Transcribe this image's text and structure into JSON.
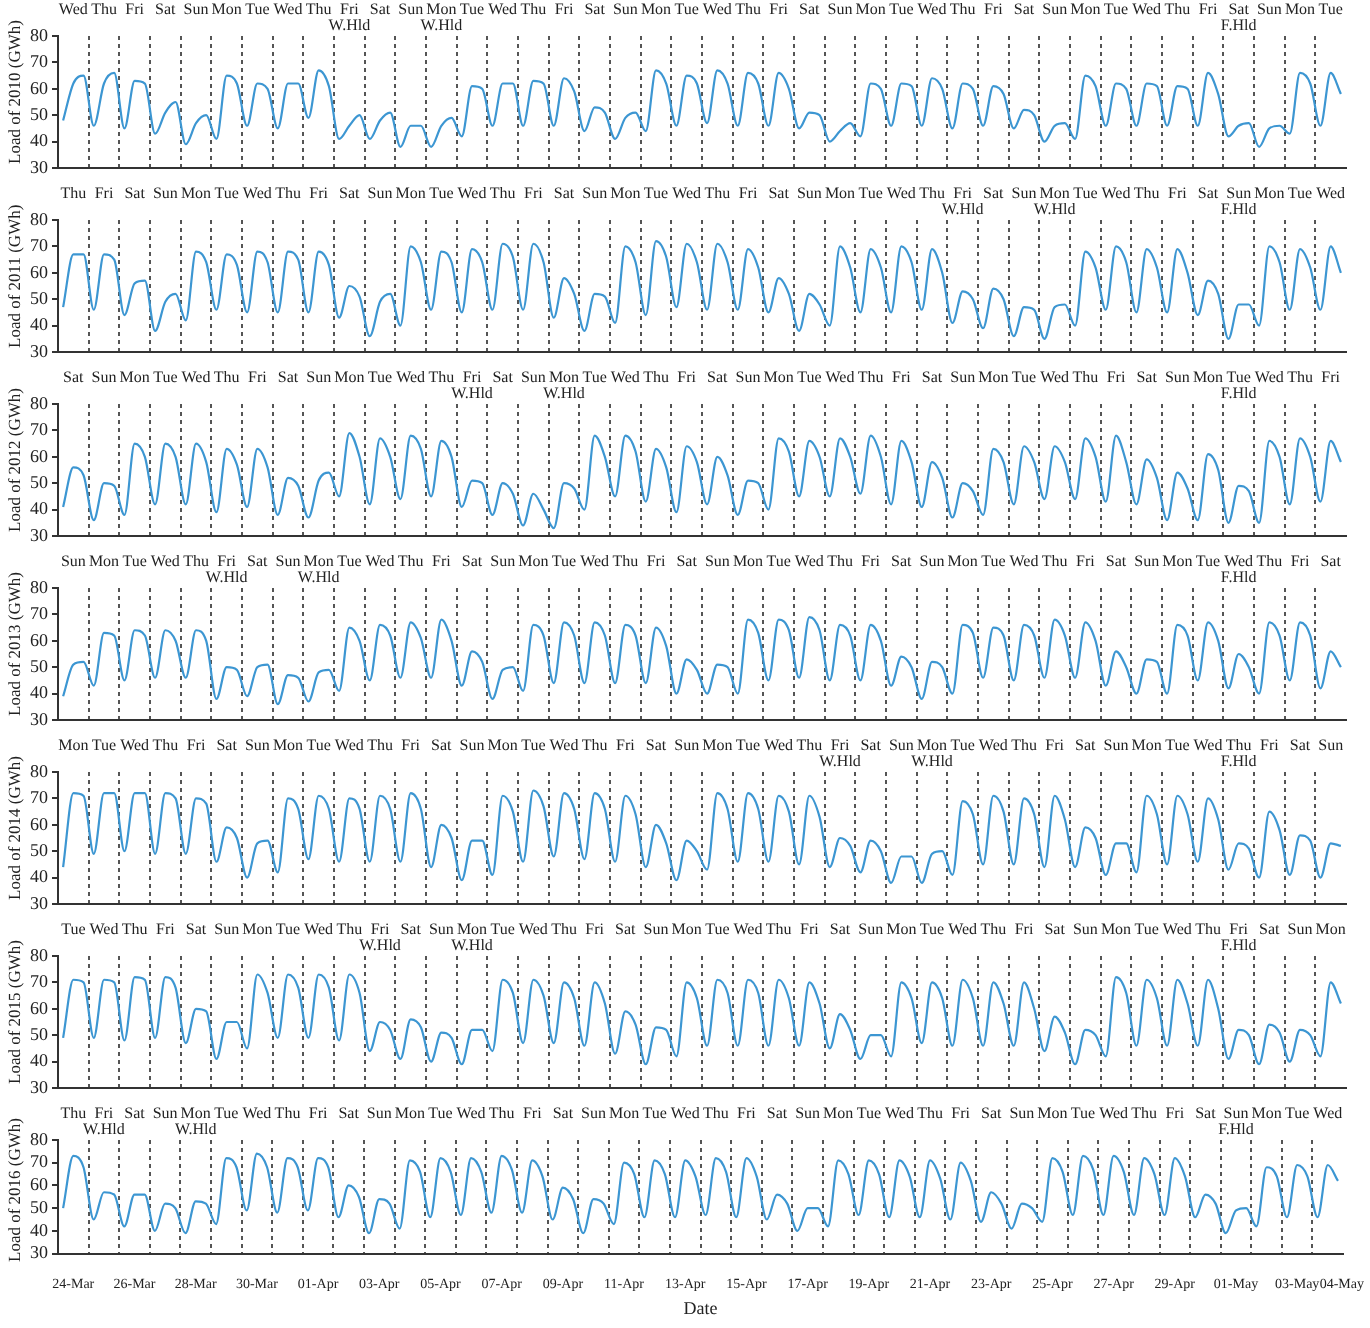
{
  "chart_data": [
    {
      "type": "line",
      "ylabel": "Load of 2010 (GWh)",
      "color": "#3c96d2",
      "marker": "none",
      "grid": "x",
      "ylim": [
        30,
        80
      ],
      "yticks": [
        30,
        40,
        50,
        60,
        70,
        80
      ],
      "categories": [
        null,
        "Wed",
        null,
        null,
        "Thu",
        null,
        null,
        "Fri",
        null,
        null,
        "Sat",
        null,
        null,
        "Sun",
        null,
        null,
        "Mon",
        null,
        null,
        "Tue",
        null,
        null,
        "Wed",
        null,
        null,
        "Thu",
        null,
        null,
        "Fri\nW.Hld",
        null,
        null,
        "Sat",
        null,
        null,
        "Sun",
        null,
        null,
        "Mon\nW.Hld",
        null,
        null,
        "Tue",
        null,
        null,
        "Wed",
        null,
        null,
        "Thu",
        null,
        null,
        "Fri",
        null,
        null,
        "Sat",
        null,
        null,
        "Sun",
        null,
        null,
        "Mon",
        null,
        null,
        "Tue",
        null,
        null,
        "Wed",
        null,
        null,
        "Thu",
        null,
        null,
        "Fri",
        null,
        null,
        "Sat",
        null,
        null,
        "Sun",
        null,
        null,
        "Mon",
        null,
        null,
        "Tue",
        null,
        null,
        "Wed",
        null,
        null,
        "Thu",
        null,
        null,
        "Fri",
        null,
        null,
        "Sat",
        null,
        null,
        "Sun",
        null,
        null,
        "Mon",
        null,
        null,
        "Tue",
        null,
        null,
        "Wed",
        null,
        null,
        "Thu",
        null,
        null,
        "Fri",
        null,
        null,
        "Sat\nF.Hld",
        null,
        null,
        "Sun",
        null,
        null,
        "Mon",
        null,
        null,
        "Tue",
        null
      ],
      "values": [
        48,
        62,
        65,
        46,
        62,
        66,
        45,
        63,
        62,
        43,
        51,
        55,
        39,
        47,
        50,
        41,
        65,
        62,
        46,
        62,
        60,
        45,
        62,
        62,
        49,
        67,
        61,
        41,
        46,
        50,
        41,
        48,
        51,
        38,
        46,
        46,
        38,
        46,
        49,
        42,
        61,
        60,
        46,
        62,
        62,
        46,
        63,
        62,
        46,
        64,
        59,
        44,
        53,
        51,
        41,
        49,
        51,
        44,
        67,
        62,
        46,
        65,
        62,
        47,
        67,
        62,
        46,
        66,
        62,
        46,
        66,
        60,
        45,
        51,
        50,
        40,
        44,
        47,
        42,
        62,
        60,
        46,
        62,
        61,
        46,
        64,
        60,
        45,
        62,
        60,
        46,
        61,
        58,
        45,
        52,
        50,
        40,
        46,
        47,
        41,
        65,
        61,
        46,
        62,
        60,
        46,
        62,
        61,
        46,
        61,
        60,
        46,
        66,
        58,
        42,
        46,
        47,
        38,
        45,
        46,
        43,
        66,
        62,
        46,
        66,
        58
      ]
    },
    {
      "type": "line",
      "ylabel": "Load of 2011 (GWh)",
      "color": "#3c96d2",
      "marker": "none",
      "grid": "x",
      "ylim": [
        30,
        80
      ],
      "yticks": [
        30,
        40,
        50,
        60,
        70,
        80
      ],
      "categories": [
        null,
        "Thu",
        null,
        null,
        "Fri",
        null,
        null,
        "Sat",
        null,
        null,
        "Sun",
        null,
        null,
        "Mon",
        null,
        null,
        "Tue",
        null,
        null,
        "Wed",
        null,
        null,
        "Thu",
        null,
        null,
        "Fri",
        null,
        null,
        "Sat",
        null,
        null,
        "Sun",
        null,
        null,
        "Mon",
        null,
        null,
        "Tue",
        null,
        null,
        "Wed",
        null,
        null,
        "Thu",
        null,
        null,
        "Fri",
        null,
        null,
        "Sat",
        null,
        null,
        "Sun",
        null,
        null,
        "Mon",
        null,
        null,
        "Tue",
        null,
        null,
        "Wed",
        null,
        null,
        "Thu",
        null,
        null,
        "Fri",
        null,
        null,
        "Sat",
        null,
        null,
        "Sun",
        null,
        null,
        "Mon",
        null,
        null,
        "Tue",
        null,
        null,
        "Wed",
        null,
        null,
        "Thu",
        null,
        null,
        "Fri\nW.Hld",
        null,
        null,
        "Sat",
        null,
        null,
        "Sun",
        null,
        null,
        "Mon\nW.Hld",
        null,
        null,
        "Tue",
        null,
        null,
        "Wed",
        null,
        null,
        "Thu",
        null,
        null,
        "Fri",
        null,
        null,
        "Sat",
        null,
        null,
        "Sun\nF.Hld",
        null,
        null,
        "Mon",
        null,
        null,
        "Tue",
        null,
        null,
        "Wed",
        null
      ],
      "values": [
        47,
        67,
        67,
        46,
        67,
        65,
        44,
        56,
        57,
        38,
        49,
        52,
        42,
        68,
        64,
        46,
        67,
        63,
        45,
        68,
        64,
        45,
        68,
        65,
        45,
        68,
        63,
        43,
        55,
        51,
        36,
        49,
        52,
        40,
        70,
        64,
        46,
        68,
        64,
        45,
        69,
        64,
        46,
        71,
        66,
        46,
        71,
        64,
        43,
        58,
        52,
        38,
        52,
        51,
        41,
        70,
        64,
        44,
        72,
        66,
        47,
        71,
        64,
        46,
        71,
        64,
        46,
        69,
        62,
        45,
        58,
        52,
        38,
        52,
        48,
        40,
        70,
        62,
        45,
        69,
        62,
        45,
        70,
        64,
        46,
        69,
        60,
        41,
        53,
        50,
        39,
        54,
        50,
        36,
        47,
        46,
        35,
        47,
        48,
        40,
        68,
        62,
        46,
        70,
        64,
        45,
        69,
        62,
        45,
        69,
        60,
        44,
        57,
        52,
        35,
        48,
        48,
        40,
        70,
        64,
        46,
        69,
        62,
        46,
        70,
        60
      ]
    },
    {
      "type": "line",
      "ylabel": "Load of 2012 (GWh)",
      "color": "#3c96d2",
      "marker": "none",
      "grid": "x",
      "ylim": [
        30,
        80
      ],
      "yticks": [
        30,
        40,
        50,
        60,
        70,
        80
      ],
      "categories": [
        null,
        "Sat",
        null,
        null,
        "Sun",
        null,
        null,
        "Mon",
        null,
        null,
        "Tue",
        null,
        null,
        "Wed",
        null,
        null,
        "Thu",
        null,
        null,
        "Fri",
        null,
        null,
        "Sat",
        null,
        null,
        "Sun",
        null,
        null,
        "Mon",
        null,
        null,
        "Tue",
        null,
        null,
        "Wed",
        null,
        null,
        "Thu",
        null,
        null,
        "Fri\nW.Hld",
        null,
        null,
        "Sat",
        null,
        null,
        "Sun",
        null,
        null,
        "Mon\nW.Hld",
        null,
        null,
        "Tue",
        null,
        null,
        "Wed",
        null,
        null,
        "Thu",
        null,
        null,
        "Fri",
        null,
        null,
        "Sat",
        null,
        null,
        "Sun",
        null,
        null,
        "Mon",
        null,
        null,
        "Tue",
        null,
        null,
        "Wed",
        null,
        null,
        "Thu",
        null,
        null,
        "Fri",
        null,
        null,
        "Sat",
        null,
        null,
        "Sun",
        null,
        null,
        "Mon",
        null,
        null,
        "Tue",
        null,
        null,
        "Wed",
        null,
        null,
        "Thu",
        null,
        null,
        "Fri",
        null,
        null,
        "Sat",
        null,
        null,
        "Sun",
        null,
        null,
        "Mon",
        null,
        null,
        "Tue\nF.Hld",
        null,
        null,
        "Wed",
        null,
        null,
        "Thu",
        null,
        null,
        "Fri",
        null
      ],
      "values": [
        41,
        56,
        53,
        36,
        50,
        49,
        38,
        65,
        60,
        42,
        65,
        60,
        42,
        65,
        58,
        39,
        63,
        57,
        41,
        63,
        56,
        38,
        52,
        49,
        37,
        51,
        54,
        45,
        69,
        60,
        42,
        67,
        60,
        44,
        68,
        63,
        45,
        66,
        60,
        41,
        51,
        50,
        38,
        50,
        46,
        34,
        46,
        40,
        33,
        50,
        48,
        40,
        68,
        60,
        45,
        68,
        62,
        43,
        63,
        56,
        39,
        64,
        58,
        42,
        60,
        53,
        38,
        51,
        50,
        40,
        67,
        62,
        45,
        66,
        60,
        45,
        67,
        60,
        46,
        68,
        60,
        42,
        66,
        58,
        41,
        58,
        52,
        37,
        50,
        47,
        38,
        63,
        58,
        42,
        64,
        58,
        44,
        64,
        58,
        44,
        67,
        60,
        43,
        68,
        58,
        42,
        59,
        52,
        36,
        54,
        48,
        36,
        61,
        55,
        35,
        49,
        47,
        35,
        66,
        60,
        42,
        67,
        60,
        43,
        66,
        58
      ]
    },
    {
      "type": "line",
      "ylabel": "Load of 2013 (GWh)",
      "color": "#3c96d2",
      "marker": "none",
      "grid": "x",
      "ylim": [
        30,
        80
      ],
      "yticks": [
        30,
        40,
        50,
        60,
        70,
        80
      ],
      "categories": [
        null,
        "Sun",
        null,
        null,
        "Mon",
        null,
        null,
        "Tue",
        null,
        null,
        "Wed",
        null,
        null,
        "Thu",
        null,
        null,
        "Fri\nW.Hld",
        null,
        null,
        "Sat",
        null,
        null,
        "Sun",
        null,
        null,
        "Mon\nW.Hld",
        null,
        null,
        "Tue",
        null,
        null,
        "Wed",
        null,
        null,
        "Thu",
        null,
        null,
        "Fri",
        null,
        null,
        "Sat",
        null,
        null,
        "Sun",
        null,
        null,
        "Mon",
        null,
        null,
        "Tue",
        null,
        null,
        "Wed",
        null,
        null,
        "Thu",
        null,
        null,
        "Fri",
        null,
        null,
        "Sat",
        null,
        null,
        "Sun",
        null,
        null,
        "Mon",
        null,
        null,
        "Tue",
        null,
        null,
        "Wed",
        null,
        null,
        "Thu",
        null,
        null,
        "Fri",
        null,
        null,
        "Sat",
        null,
        null,
        "Sun",
        null,
        null,
        "Mon",
        null,
        null,
        "Tue",
        null,
        null,
        "Wed",
        null,
        null,
        "Thu",
        null,
        null,
        "Fri",
        null,
        null,
        "Sat",
        null,
        null,
        "Sun",
        null,
        null,
        "Mon",
        null,
        null,
        "Tue",
        null,
        null,
        "Wed\nF.Hld",
        null,
        null,
        "Thu",
        null,
        null,
        "Fri",
        null,
        null,
        "Sat",
        null
      ],
      "values": [
        39,
        51,
        52,
        43,
        63,
        62,
        45,
        64,
        62,
        46,
        64,
        60,
        46,
        64,
        60,
        38,
        50,
        49,
        39,
        50,
        51,
        36,
        47,
        46,
        37,
        48,
        49,
        41,
        65,
        60,
        45,
        66,
        62,
        46,
        67,
        61,
        46,
        68,
        60,
        43,
        56,
        52,
        38,
        49,
        50,
        41,
        66,
        62,
        44,
        67,
        62,
        44,
        67,
        62,
        44,
        66,
        62,
        44,
        65,
        58,
        40,
        53,
        49,
        40,
        51,
        50,
        40,
        68,
        63,
        45,
        68,
        64,
        46,
        69,
        64,
        45,
        66,
        62,
        45,
        66,
        60,
        43,
        54,
        50,
        38,
        52,
        50,
        40,
        66,
        63,
        46,
        65,
        62,
        45,
        66,
        62,
        46,
        68,
        62,
        46,
        67,
        60,
        43,
        56,
        50,
        40,
        53,
        52,
        40,
        66,
        62,
        45,
        67,
        60,
        42,
        55,
        50,
        40,
        67,
        62,
        45,
        67,
        62,
        42,
        56,
        50
      ]
    },
    {
      "type": "line",
      "ylabel": "Load of 2014 (GWh)",
      "color": "#3c96d2",
      "marker": "none",
      "grid": "x",
      "ylim": [
        30,
        80
      ],
      "yticks": [
        30,
        40,
        50,
        60,
        70,
        80
      ],
      "categories": [
        null,
        "Mon",
        null,
        null,
        "Tue",
        null,
        null,
        "Wed",
        null,
        null,
        "Thu",
        null,
        null,
        "Fri",
        null,
        null,
        "Sat",
        null,
        null,
        "Sun",
        null,
        null,
        "Mon",
        null,
        null,
        "Tue",
        null,
        null,
        "Wed",
        null,
        null,
        "Thu",
        null,
        null,
        "Fri",
        null,
        null,
        "Sat",
        null,
        null,
        "Sun",
        null,
        null,
        "Mon",
        null,
        null,
        "Tue",
        null,
        null,
        "Wed",
        null,
        null,
        "Thu",
        null,
        null,
        "Fri",
        null,
        null,
        "Sat",
        null,
        null,
        "Sun",
        null,
        null,
        "Mon",
        null,
        null,
        "Tue",
        null,
        null,
        "Wed",
        null,
        null,
        "Thu",
        null,
        null,
        "Fri\nW.Hld",
        null,
        null,
        "Sat",
        null,
        null,
        "Sun",
        null,
        null,
        "Mon\nW.Hld",
        null,
        null,
        "Tue",
        null,
        null,
        "Wed",
        null,
        null,
        "Thu",
        null,
        null,
        "Fri",
        null,
        null,
        "Sat",
        null,
        null,
        "Sun",
        null,
        null,
        "Mon",
        null,
        null,
        "Tue",
        null,
        null,
        "Wed",
        null,
        null,
        "Thu\nF.Hld",
        null,
        null,
        "Fri",
        null,
        null,
        "Sat",
        null,
        null,
        "Sun",
        null
      ],
      "values": [
        44,
        72,
        71,
        49,
        72,
        72,
        50,
        72,
        72,
        49,
        72,
        70,
        49,
        70,
        68,
        46,
        59,
        55,
        40,
        53,
        54,
        42,
        70,
        66,
        47,
        71,
        66,
        46,
        70,
        66,
        46,
        71,
        66,
        46,
        72,
        66,
        44,
        60,
        55,
        39,
        54,
        54,
        41,
        71,
        65,
        46,
        73,
        67,
        48,
        72,
        66,
        47,
        72,
        66,
        46,
        71,
        64,
        44,
        60,
        53,
        39,
        54,
        50,
        43,
        72,
        66,
        46,
        72,
        66,
        46,
        71,
        65,
        45,
        71,
        63,
        44,
        55,
        52,
        42,
        54,
        50,
        38,
        48,
        48,
        38,
        49,
        50,
        41,
        69,
        64,
        45,
        71,
        65,
        45,
        70,
        64,
        44,
        71,
        62,
        44,
        59,
        55,
        41,
        53,
        53,
        42,
        71,
        64,
        45,
        71,
        64,
        46,
        70,
        62,
        43,
        53,
        51,
        40,
        65,
        58,
        41,
        56,
        54,
        40,
        53,
        52
      ]
    },
    {
      "type": "line",
      "ylabel": "Load of 2015 (GWh)",
      "color": "#3c96d2",
      "marker": "none",
      "grid": "x",
      "ylim": [
        30,
        80
      ],
      "yticks": [
        30,
        40,
        50,
        60,
        70,
        80
      ],
      "categories": [
        null,
        "Tue",
        null,
        null,
        "Wed",
        null,
        null,
        "Thu",
        null,
        null,
        "Fri",
        null,
        null,
        "Sat",
        null,
        null,
        "Sun",
        null,
        null,
        "Mon",
        null,
        null,
        "Tue",
        null,
        null,
        "Wed",
        null,
        null,
        "Thu",
        null,
        null,
        "Fri\nW.Hld",
        null,
        null,
        "Sat",
        null,
        null,
        "Sun",
        null,
        null,
        "Mon\nW.Hld",
        null,
        null,
        "Tue",
        null,
        null,
        "Wed",
        null,
        null,
        "Thu",
        null,
        null,
        "Fri",
        null,
        null,
        "Sat",
        null,
        null,
        "Sun",
        null,
        null,
        "Mon",
        null,
        null,
        "Tue",
        null,
        null,
        "Wed",
        null,
        null,
        "Thu",
        null,
        null,
        "Fri",
        null,
        null,
        "Sat",
        null,
        null,
        "Sun",
        null,
        null,
        "Mon",
        null,
        null,
        "Tue",
        null,
        null,
        "Wed",
        null,
        null,
        "Thu",
        null,
        null,
        "Fri",
        null,
        null,
        "Sat",
        null,
        null,
        "Sun",
        null,
        null,
        "Mon",
        null,
        null,
        "Tue",
        null,
        null,
        "Wed",
        null,
        null,
        "Thu",
        null,
        null,
        "Fri\nF.Hld",
        null,
        null,
        "Sat",
        null,
        null,
        "Sun",
        null,
        null,
        "Mon",
        null
      ],
      "values": [
        49,
        71,
        70,
        49,
        71,
        70,
        48,
        72,
        71,
        49,
        72,
        68,
        47,
        60,
        59,
        41,
        55,
        55,
        45,
        73,
        66,
        49,
        73,
        68,
        49,
        73,
        68,
        48,
        73,
        66,
        44,
        55,
        52,
        41,
        56,
        53,
        40,
        51,
        49,
        39,
        52,
        52,
        44,
        71,
        66,
        47,
        71,
        65,
        47,
        70,
        64,
        46,
        70,
        62,
        43,
        59,
        54,
        39,
        53,
        52,
        42,
        70,
        64,
        46,
        71,
        66,
        46,
        71,
        66,
        46,
        71,
        64,
        46,
        70,
        62,
        45,
        58,
        52,
        41,
        50,
        50,
        42,
        70,
        64,
        47,
        70,
        64,
        46,
        71,
        64,
        46,
        70,
        62,
        46,
        70,
        60,
        44,
        57,
        51,
        39,
        52,
        50,
        42,
        72,
        66,
        46,
        71,
        64,
        46,
        71,
        62,
        46,
        71,
        60,
        41,
        52,
        50,
        39,
        54,
        51,
        40,
        52,
        50,
        42,
        70,
        62
      ]
    },
    {
      "type": "line",
      "ylabel": "Load of 2016 (GWh)",
      "xlabel": "Date",
      "color": "#3c96d2",
      "marker": "none",
      "grid": "x",
      "ylim": [
        30,
        80
      ],
      "yticks": [
        30,
        40,
        50,
        60,
        70,
        80
      ],
      "categories": [
        null,
        "Thu",
        null,
        null,
        "Fri\nW.Hld",
        null,
        null,
        "Sat",
        null,
        null,
        "Sun",
        null,
        null,
        "Mon\nW.Hld",
        null,
        null,
        "Tue",
        null,
        null,
        "Wed",
        null,
        null,
        "Thu",
        null,
        null,
        "Fri",
        null,
        null,
        "Sat",
        null,
        null,
        "Sun",
        null,
        null,
        "Mon",
        null,
        null,
        "Tue",
        null,
        null,
        "Wed",
        null,
        null,
        "Thu",
        null,
        null,
        "Fri",
        null,
        null,
        "Sat",
        null,
        null,
        "Sun",
        null,
        null,
        "Mon",
        null,
        null,
        "Tue",
        null,
        null,
        "Wed",
        null,
        null,
        "Thu",
        null,
        null,
        "Fri",
        null,
        null,
        "Sat",
        null,
        null,
        "Sun",
        null,
        null,
        "Mon",
        null,
        null,
        "Tue",
        null,
        null,
        "Wed",
        null,
        null,
        "Thu",
        null,
        null,
        "Fri",
        null,
        null,
        "Sat",
        null,
        null,
        "Sun",
        null,
        null,
        "Mon",
        null,
        null,
        "Tue",
        null,
        null,
        "Wed",
        null,
        null,
        "Thu",
        null,
        null,
        "Fri",
        null,
        null,
        "Sat",
        null,
        null,
        "Sun\nF.Hld",
        null,
        null,
        "Mon",
        null,
        null,
        "Tue",
        null,
        null,
        "Wed",
        null
      ],
      "x2lim": [
        "2016-03-24",
        "2016-05-05"
      ],
      "x2ticks": [
        {
          "value": "2016-03-24T12:00",
          "label": "24-Mar"
        },
        {
          "value": "2016-03-26T12:00",
          "label": "26-Mar"
        },
        {
          "value": "2016-03-28T12:00",
          "label": "28-Mar"
        },
        {
          "value": "2016-03-30T12:00",
          "label": "30-Mar"
        },
        {
          "value": "2016-04-01T12:00",
          "label": "01-Apr"
        },
        {
          "value": "2016-04-03T12:00",
          "label": "03-Apr"
        },
        {
          "value": "2016-04-05T12:00",
          "label": "05-Apr"
        },
        {
          "value": "2016-04-07T12:00",
          "label": "07-Apr"
        },
        {
          "value": "2016-04-09T12:00",
          "label": "09-Apr"
        },
        {
          "value": "2016-04-11T12:00",
          "label": "11-Apr"
        },
        {
          "value": "2016-04-13T12:00",
          "label": "13-Apr"
        },
        {
          "value": "2016-04-15T12:00",
          "label": "15-Apr"
        },
        {
          "value": "2016-04-17T12:00",
          "label": "17-Apr"
        },
        {
          "value": "2016-04-19T12:00",
          "label": "19-Apr"
        },
        {
          "value": "2016-04-21T12:00",
          "label": "21-Apr"
        },
        {
          "value": "2016-04-23T12:00",
          "label": "23-Apr"
        },
        {
          "value": "2016-04-25T12:00",
          "label": "25-Apr"
        },
        {
          "value": "2016-04-27T12:00",
          "label": "27-Apr"
        },
        {
          "value": "2016-04-29T12:00",
          "label": "29-Apr"
        },
        {
          "value": "2016-05-01T12:00",
          "label": "01-May"
        },
        {
          "value": "2016-05-03T12:00",
          "label": "03-May"
        },
        {
          "value": "2016-05-04T23:00",
          "label": "04-May"
        }
      ],
      "values": [
        50,
        73,
        68,
        45,
        57,
        56,
        42,
        56,
        56,
        40,
        52,
        50,
        39,
        53,
        52,
        43,
        72,
        68,
        49,
        74,
        68,
        48,
        72,
        68,
        49,
        72,
        68,
        46,
        60,
        55,
        39,
        54,
        52,
        41,
        71,
        66,
        46,
        72,
        66,
        47,
        72,
        66,
        48,
        73,
        67,
        48,
        71,
        64,
        45,
        59,
        54,
        39,
        54,
        52,
        43,
        70,
        65,
        46,
        71,
        65,
        46,
        71,
        64,
        47,
        72,
        66,
        46,
        72,
        64,
        45,
        56,
        52,
        40,
        50,
        50,
        42,
        71,
        65,
        47,
        71,
        65,
        46,
        71,
        64,
        46,
        71,
        63,
        45,
        70,
        62,
        44,
        57,
        52,
        41,
        52,
        50,
        44,
        72,
        66,
        47,
        73,
        67,
        47,
        73,
        66,
        47,
        72,
        65,
        47,
        72,
        64,
        46,
        56,
        52,
        39,
        49,
        50,
        42,
        68,
        64,
        46,
        69,
        64,
        46,
        69,
        62
      ]
    }
  ]
}
